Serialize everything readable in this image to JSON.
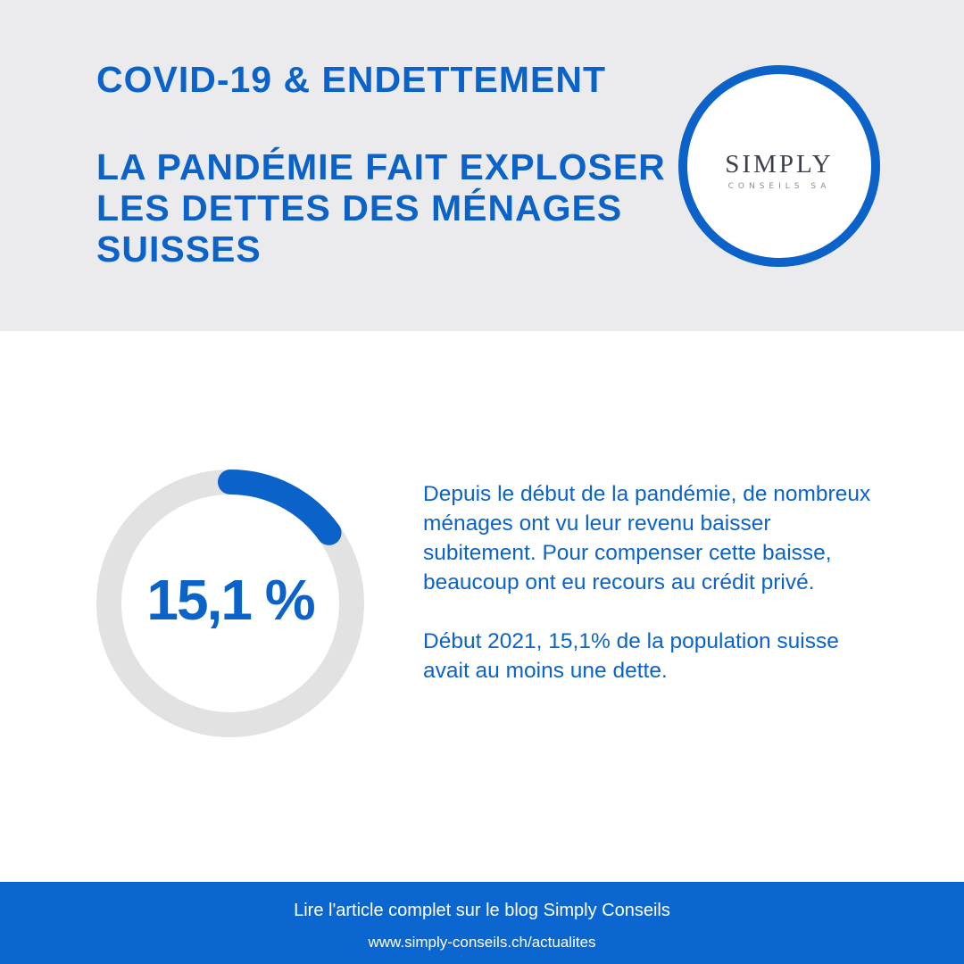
{
  "header": {
    "kicker": "COVID-19 & ENDETTEMENT",
    "headline": "LA PANDÉMIE FAIT EXPLOSER LES DETTES DES MÉNAGES SUISSES",
    "logo": {
      "main": "SIMPLY",
      "sub": "CONSEILS SA"
    }
  },
  "stat": {
    "label": "15,1 %",
    "value_percent": 15.1,
    "colors": {
      "fill": "#0b63c9",
      "track": "#e2e2e2"
    }
  },
  "body": {
    "paragraph1": "Depuis le début de la pandémie, de nombreux ménages ont vu leur revenu baisser subitement. Pour compenser cette baisse, beaucoup ont eu recours au crédit privé.",
    "paragraph2": "Début 2021, 15,1% de la population suisse avait au moins une dette."
  },
  "footer": {
    "cta": "Lire l'article complet sur le blog Simply Conseils",
    "url": "www.simply-conseils.ch/actualites"
  },
  "colors": {
    "accent": "#0b63c9",
    "header_bg": "#ebebed",
    "footer_bg": "#0b66d0"
  }
}
